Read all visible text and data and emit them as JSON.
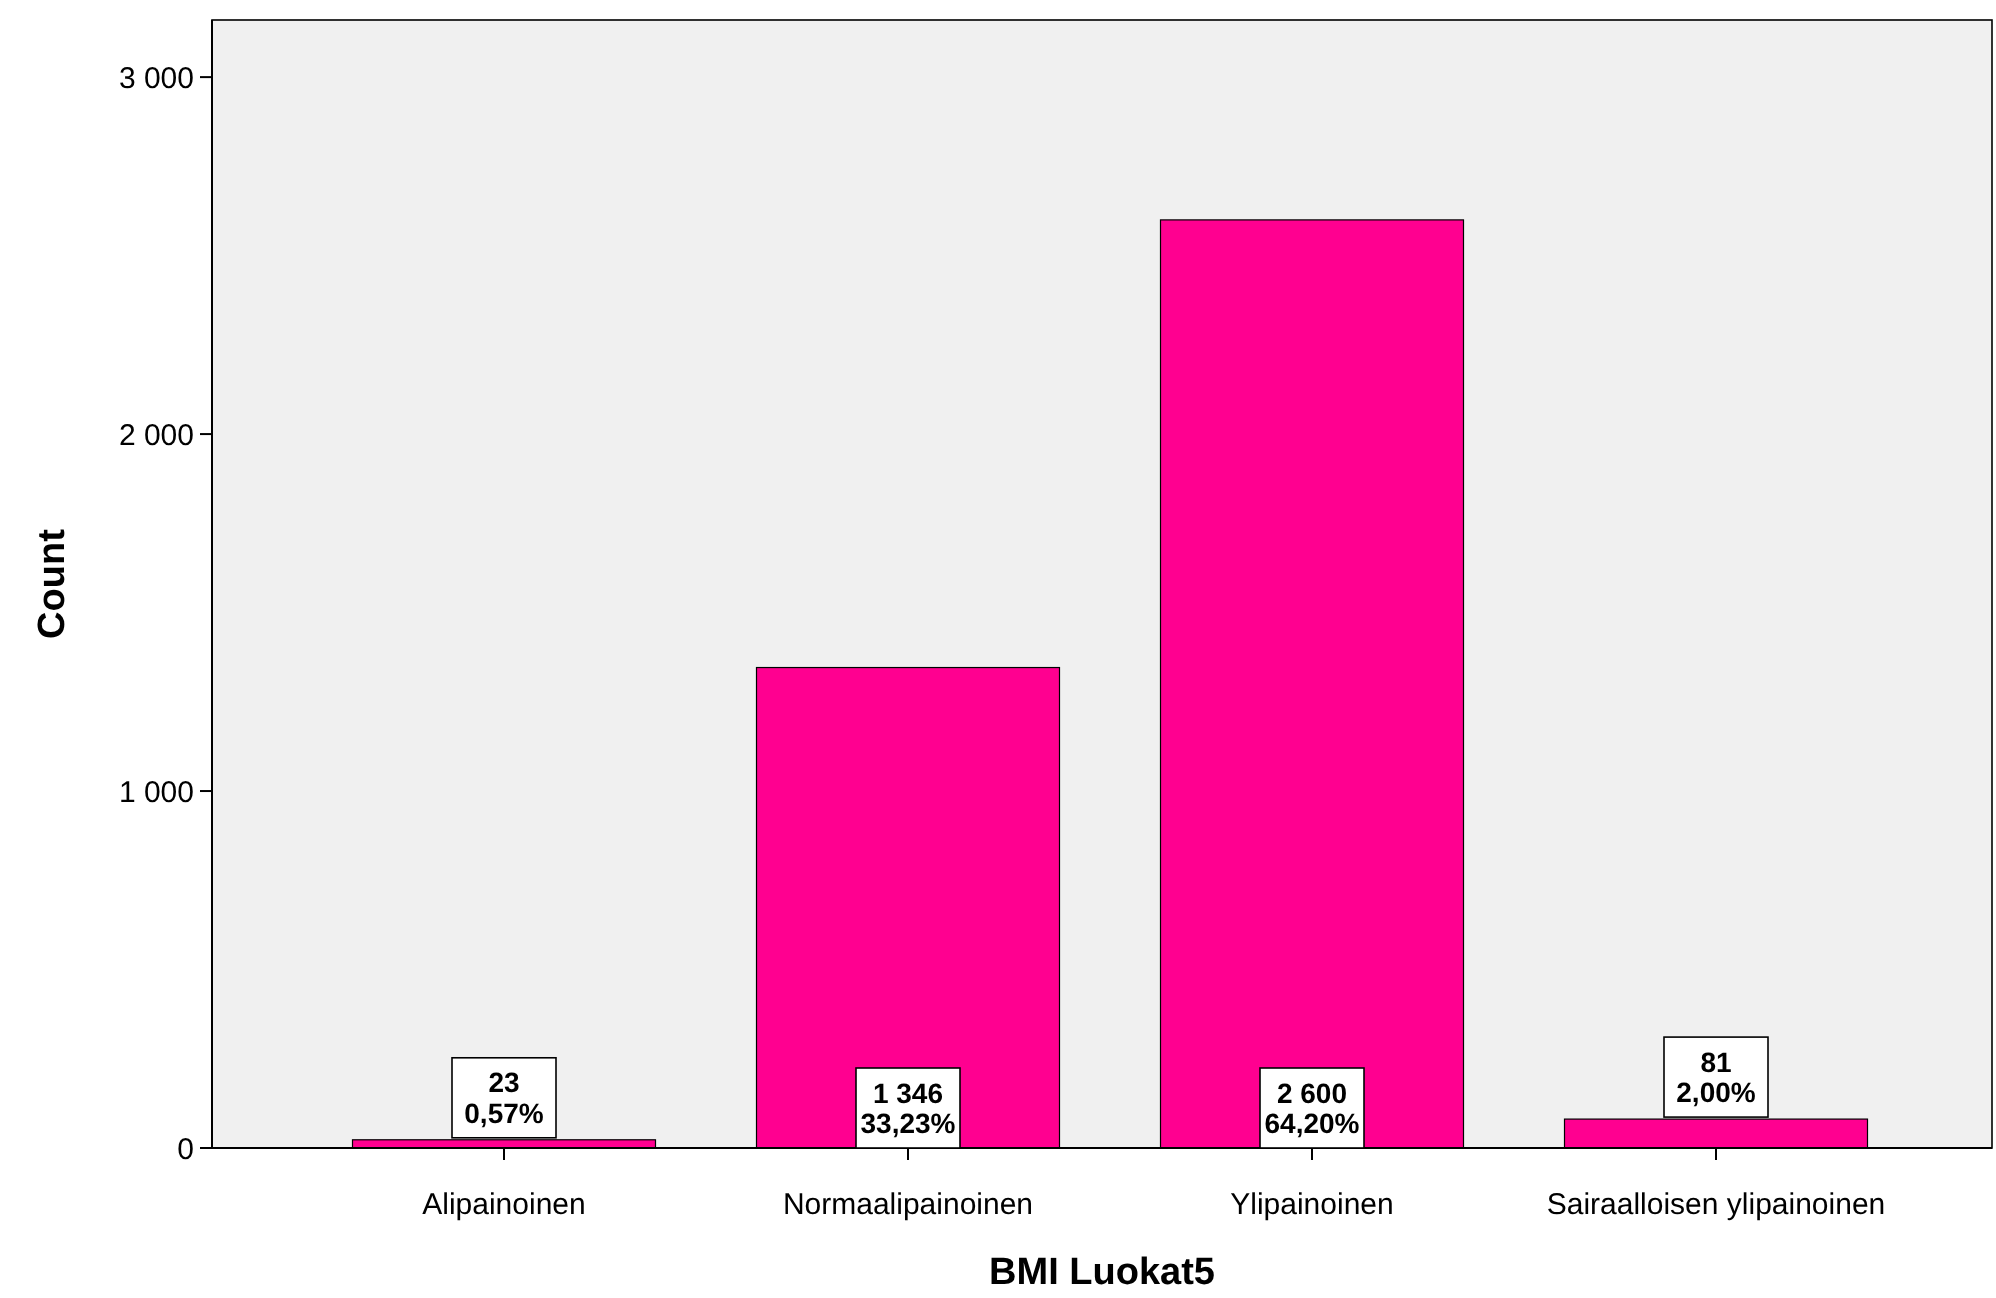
{
  "chart_data": {
    "type": "bar",
    "xlabel": "BMI Luokat5",
    "ylabel": "Count",
    "categories": [
      "Alipainoinen",
      "Normaalipainoinen",
      "Ylipainoinen",
      "Sairaalloisen ylipainoinen"
    ],
    "values": [
      23,
      1346,
      2600,
      81
    ],
    "value_labels": [
      "23\n0,57%",
      "1 346\n33,23%",
      "2 600\n64,20%",
      "81\n2,00%"
    ],
    "color": "#ff0090",
    "ylim": [
      0,
      3160
    ],
    "yticks": [
      0,
      {
        "value": 1000,
        "label": "1 000"
      },
      {
        "value": 2000,
        "label": "2 000"
      },
      {
        "value": 3000,
        "label": "3 000"
      }
    ],
    "grid": false
  }
}
